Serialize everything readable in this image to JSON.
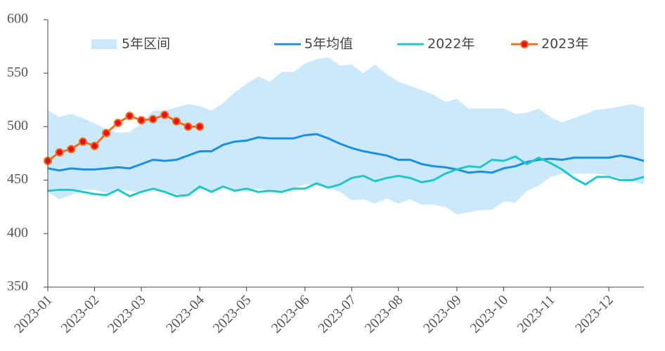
{
  "chart_data": {
    "type": "line",
    "categories": [
      "2023-01",
      null,
      null,
      null,
      "2023-02",
      null,
      null,
      null,
      "2023-03",
      null,
      null,
      null,
      null,
      "2023-04",
      null,
      null,
      null,
      "2023-05",
      null,
      null,
      null,
      null,
      "2023-06",
      null,
      null,
      null,
      "2023-07",
      null,
      null,
      null,
      "2023-08",
      null,
      null,
      null,
      null,
      "2023-09",
      null,
      null,
      null,
      "2023-10",
      null,
      null,
      null,
      "2023-11",
      null,
      null,
      null,
      null,
      "2023-12",
      null,
      null,
      null
    ],
    "series": [
      {
        "name": "5年区间",
        "type": "range",
        "color": "#cce9fb",
        "upper": [
          515,
          509,
          512,
          508,
          503,
          498,
          494,
          495,
          503,
          515,
          515,
          518,
          521,
          519,
          515,
          522,
          532,
          540,
          547,
          542,
          551,
          551,
          559,
          563,
          565,
          557,
          558,
          550,
          558,
          549,
          542,
          538,
          534,
          530,
          523,
          526,
          517,
          517,
          517,
          517,
          512,
          513,
          517,
          509,
          504,
          508,
          512,
          516,
          517,
          519,
          521,
          518
        ],
        "lower": [
          439,
          432,
          436,
          441,
          441,
          438,
          441,
          440,
          438,
          441,
          440,
          437,
          435,
          442,
          439,
          443,
          441,
          440,
          442,
          440,
          440,
          442,
          446,
          445,
          443,
          439,
          431,
          432,
          428,
          433,
          428,
          432,
          427,
          427,
          425,
          418,
          420,
          422,
          422,
          430,
          429,
          440,
          445,
          453,
          456,
          456,
          456,
          456,
          454,
          452,
          449,
          446
        ]
      },
      {
        "name": "5年均值",
        "color": "#1a8fe3",
        "values": [
          461,
          459,
          461,
          460,
          460,
          461,
          462,
          461,
          465,
          469,
          468,
          469,
          473,
          477,
          477,
          483,
          486,
          487,
          490,
          489,
          489,
          489,
          492,
          493,
          489,
          484,
          480,
          477,
          475,
          473,
          469,
          469,
          465,
          463,
          462,
          460,
          457,
          458,
          457,
          461,
          463,
          467,
          469,
          470,
          469,
          471,
          471,
          471,
          471,
          473,
          471,
          468
        ]
      },
      {
        "name": "2022年",
        "color": "#1ec8c8",
        "values": [
          440,
          441,
          441,
          439,
          437,
          436,
          441,
          435,
          439,
          442,
          439,
          435,
          436,
          444,
          439,
          444,
          440,
          442,
          439,
          440,
          439,
          442,
          442,
          447,
          443,
          446,
          452,
          454,
          449,
          452,
          454,
          452,
          448,
          450,
          456,
          460,
          463,
          462,
          469,
          468,
          472,
          465,
          471,
          466,
          460,
          452,
          446,
          453,
          453,
          450,
          450,
          453
        ]
      },
      {
        "name": "2023年",
        "color": "#f07020",
        "marker_color": "#e8101a",
        "values": [
          468,
          476,
          479,
          486,
          482,
          494,
          503.5,
          510,
          506,
          507,
          511,
          505,
          500,
          500,
          null,
          null,
          null,
          null,
          null,
          null,
          null,
          null,
          null,
          null,
          null,
          null,
          null,
          null,
          null,
          null,
          null,
          null,
          null,
          null,
          null,
          null,
          null,
          null,
          null,
          null,
          null,
          null,
          null,
          null,
          null,
          null,
          null,
          null,
          null,
          null,
          null,
          null
        ]
      }
    ],
    "ylim": [
      350,
      600
    ],
    "yticks": [
      350,
      400,
      450,
      500,
      550,
      600
    ],
    "grid": false
  }
}
